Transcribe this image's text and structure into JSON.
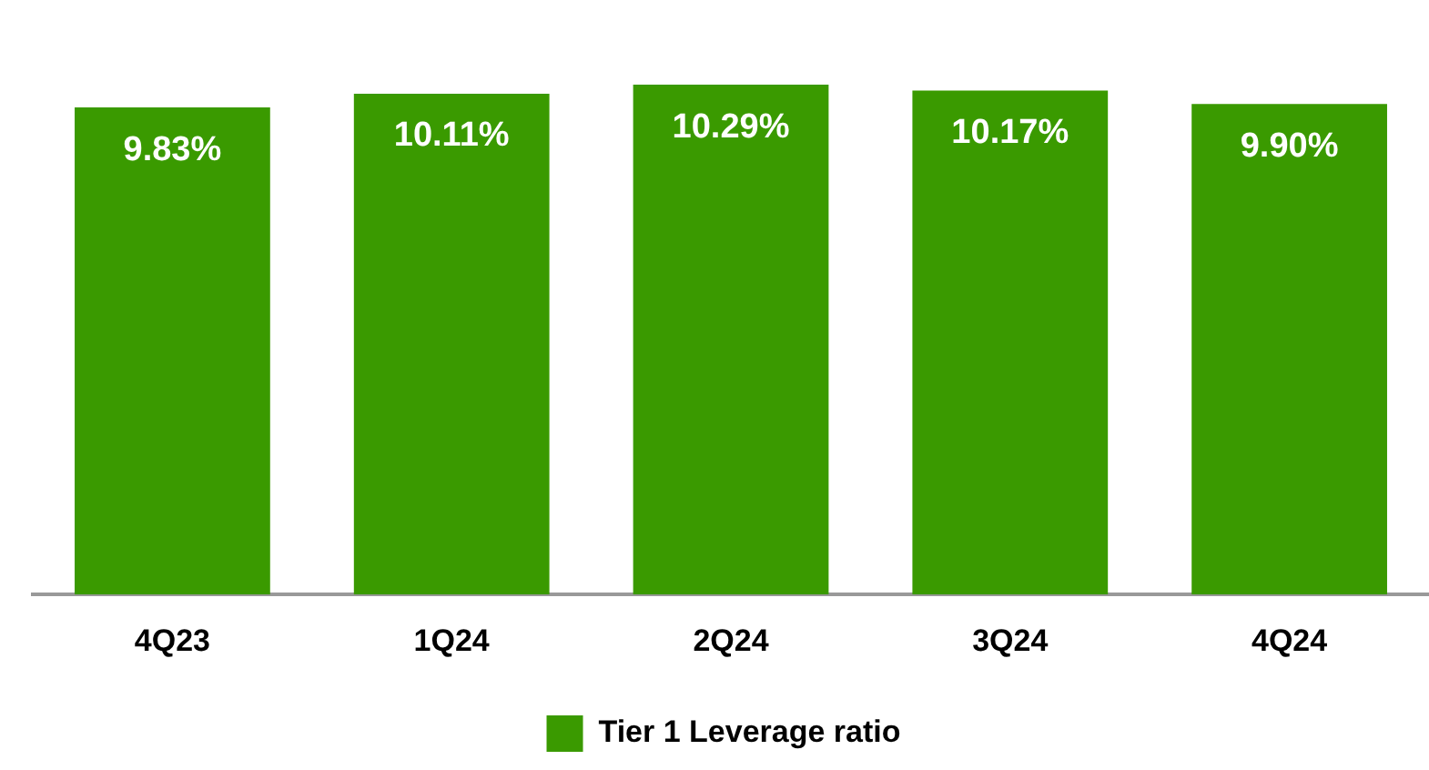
{
  "chart_data": {
    "type": "bar",
    "categories": [
      "4Q23",
      "1Q24",
      "2Q24",
      "3Q24",
      "4Q24"
    ],
    "series": [
      {
        "name": "Tier 1 Leverage ratio",
        "color": "#3a9a00",
        "values": [
          9.83,
          10.11,
          10.29,
          10.17,
          9.9
        ],
        "value_labels": [
          "9.83%",
          "10.11%",
          "10.29%",
          "10.17%",
          "9.90%"
        ]
      }
    ],
    "tick_labels": "x",
    "grid": false,
    "legend": "bottom"
  }
}
